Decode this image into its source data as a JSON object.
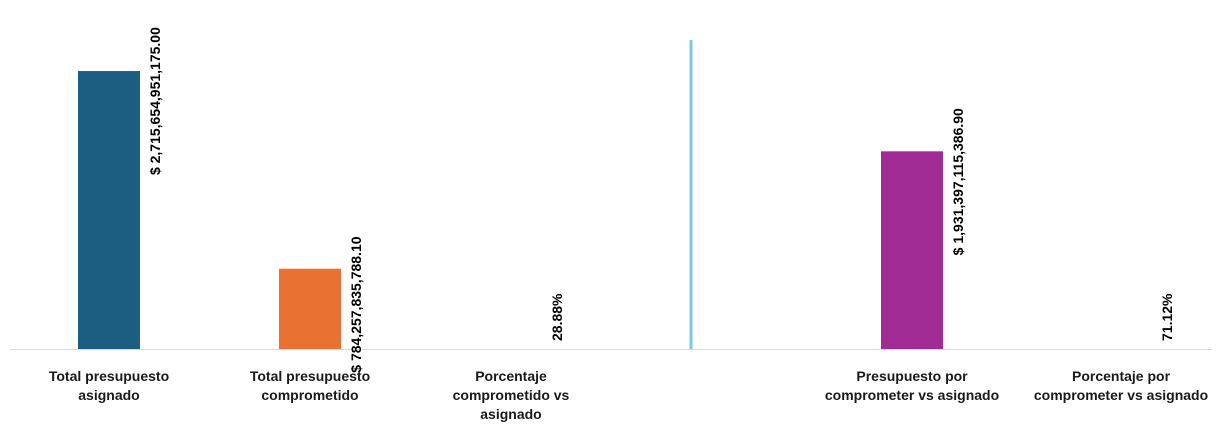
{
  "chart_data": {
    "type": "bar",
    "categories": [
      [
        "Total presupuesto",
        "asignado"
      ],
      [
        "Total presupuesto",
        "comprometido"
      ],
      [
        "Porcentaje",
        "comprometido vs",
        "asignado"
      ],
      [
        "Presupuesto por",
        "comprometer vs asignado"
      ],
      [
        "Porcentaje  por",
        "comprometer vs asignado"
      ]
    ],
    "values": [
      2715654951175.0,
      784257835788.1,
      0.2888,
      1931397115386.9,
      0.7112
    ],
    "value_labels": [
      "$ 2,715,654,951,175.00",
      "$ 784,257,835,788.10",
      "28.88%",
      "$ 1,931,397,115,386.90",
      "71.12%"
    ],
    "colors": [
      "#1b5e82",
      "#e97132",
      "#d9d9d9",
      "#a02b93",
      "#d9d9d9"
    ],
    "divider_color": "#7ec8e3",
    "axis_color": "#d9d9d9",
    "ylim": [
      0,
      3400000000000
    ],
    "title": "",
    "xlabel": "",
    "ylabel": "",
    "grid": false,
    "legend": "none"
  }
}
